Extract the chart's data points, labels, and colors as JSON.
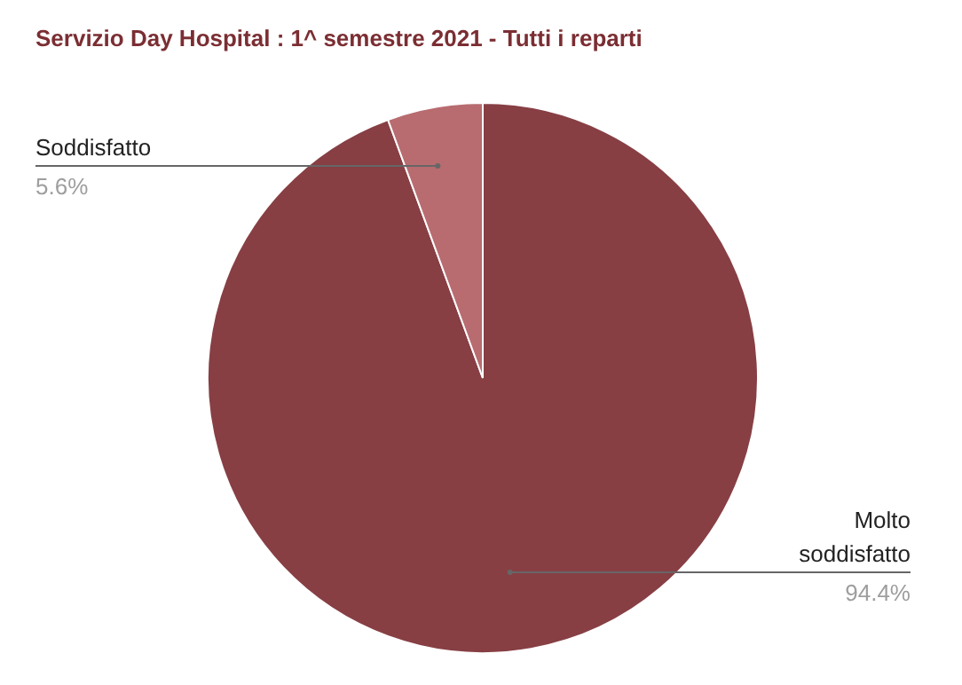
{
  "chart_data": {
    "type": "pie",
    "title": "Servizio Day Hospital : 1^ semestre 2021 - Tutti i reparti",
    "categories": [
      "Molto soddisfatto",
      "Soddisfatto"
    ],
    "values": [
      94.4,
      5.6
    ],
    "colors": [
      "#873f44",
      "#b86c70"
    ],
    "value_labels": [
      "94.4%",
      "5.6%"
    ]
  }
}
